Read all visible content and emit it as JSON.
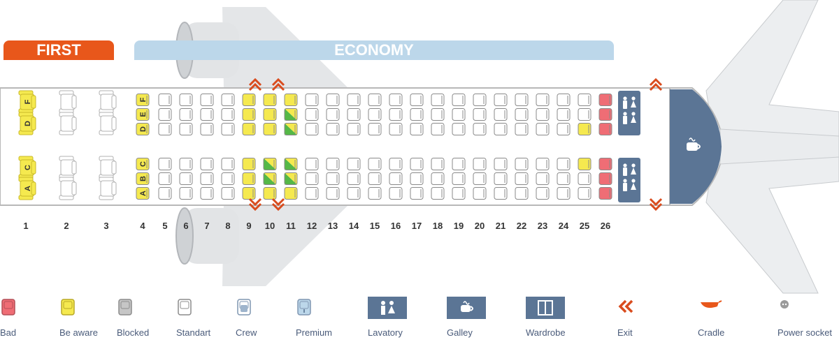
{
  "sections": {
    "first": {
      "label": "FIRST",
      "color": "#e8571b"
    },
    "economy": {
      "label": "ECONOMY",
      "color": "#bcd7ea"
    }
  },
  "rows": [
    "1",
    "2",
    "3",
    "4",
    "5",
    "6",
    "7",
    "8",
    "9",
    "10",
    "11",
    "12",
    "13",
    "14",
    "15",
    "16",
    "17",
    "18",
    "19",
    "20",
    "21",
    "22",
    "23",
    "24",
    "25",
    "26"
  ],
  "seat_letters": {
    "first_top": [
      "F",
      "D"
    ],
    "first_bottom": [
      "C",
      "A"
    ],
    "row4_top": [
      "F",
      "E",
      "D"
    ],
    "row4_bottom": [
      "C",
      "B",
      "A"
    ]
  },
  "seat_status": {
    "bad": [
      "26A",
      "26B",
      "26C",
      "26D",
      "26E",
      "26F"
    ],
    "be_aware": [
      "1A",
      "1C",
      "1D",
      "1F",
      "4A",
      "4B",
      "4C",
      "4D",
      "4E",
      "4F",
      "9A",
      "9B",
      "9C",
      "9D",
      "9E",
      "9F",
      "10A",
      "10D",
      "10E",
      "10F",
      "11A",
      "11F",
      "25C",
      "25D"
    ],
    "premium_exit": [
      "10B",
      "10C",
      "11B",
      "11C",
      "11D",
      "11E"
    ]
  },
  "legend": [
    {
      "key": "bad",
      "label": "Bad",
      "icon": "bad-seat-icon"
    },
    {
      "key": "be_aware",
      "label": "Be aware",
      "icon": "be-aware-seat-icon"
    },
    {
      "key": "blocked",
      "label": "Blocked",
      "icon": "blocked-seat-icon"
    },
    {
      "key": "standart",
      "label": "Standart",
      "icon": "standard-seat-icon"
    },
    {
      "key": "crew",
      "label": "Crew",
      "icon": "crew-seat-icon"
    },
    {
      "key": "premium",
      "label": "Premium",
      "icon": "premium-seat-icon"
    },
    {
      "key": "lavatory",
      "label": "Lavatory",
      "icon": "lavatory-icon"
    },
    {
      "key": "galley",
      "label": "Galley",
      "icon": "galley-icon"
    },
    {
      "key": "wardrobe",
      "label": "Wardrobe",
      "icon": "wardrobe-icon"
    },
    {
      "key": "exit",
      "label": "Exit",
      "icon": "exit-icon"
    },
    {
      "key": "cradle",
      "label": "Cradle",
      "icon": "cradle-icon"
    },
    {
      "key": "power",
      "label": "Power socket",
      "icon": "power-socket-icon"
    }
  ],
  "colors": {
    "bad": "#ef6d75",
    "be_aware": "#f5e94f",
    "blocked": "#c6c6c6",
    "standart": "#ffffff",
    "crew": "#9eb4cc",
    "premium": "#bcd7ea",
    "exit_row_green": "#55b847",
    "exit_arrow": "#d94c1e",
    "facility": "#5b7595",
    "fuselage_stroke": "#b8b8b8",
    "seat_stroke": "#8a8a8a"
  }
}
